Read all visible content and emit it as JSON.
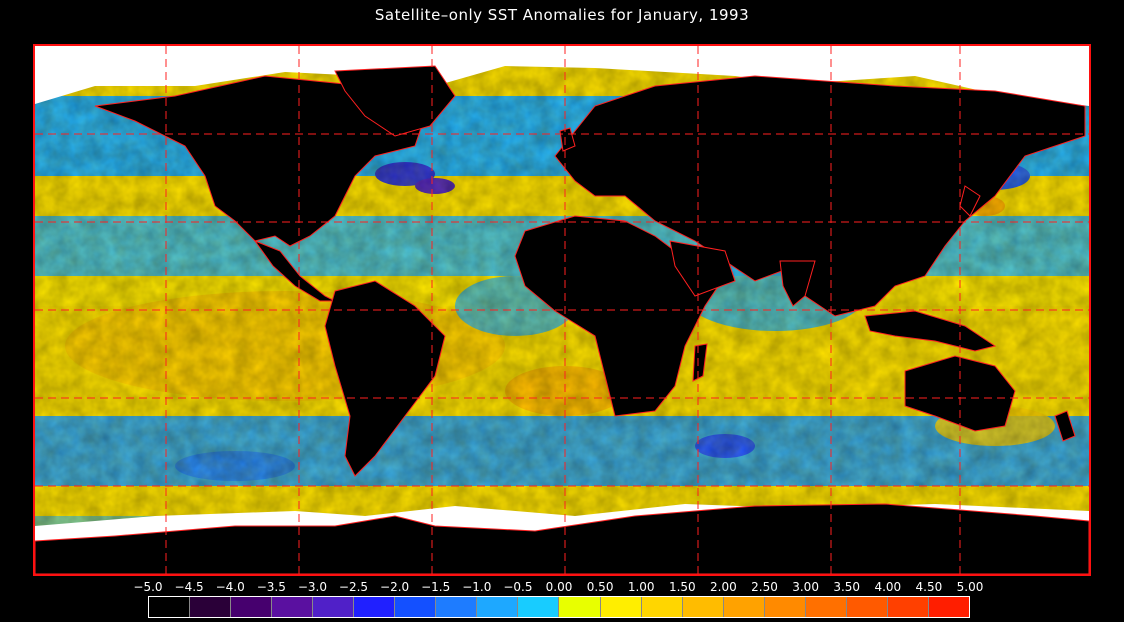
{
  "title": "Satellite–only SST Anomalies for January, 1993",
  "colorbar": {
    "ticks": [
      "−5.0",
      "−4.5",
      "−4.0",
      "−3.5",
      "−3.0",
      "−2.5",
      "−2.0",
      "−1.5",
      "−1.0",
      "−0.5",
      "0.00",
      "0.50",
      "1.00",
      "1.50",
      "2.00",
      "2.50",
      "3.00",
      "3.50",
      "4.00",
      "4.50",
      "5.00"
    ],
    "colors": [
      "#000000",
      "#2a0038",
      "#46006e",
      "#5a10a0",
      "#5020c8",
      "#2020ff",
      "#1450ff",
      "#1e7cff",
      "#1ea8ff",
      "#18ccff",
      "#e8ff00",
      "#ffee00",
      "#ffd600",
      "#ffbc00",
      "#ffa200",
      "#ff8a00",
      "#ff7000",
      "#ff5a00",
      "#ff4000",
      "#ff1e00"
    ]
  },
  "map": {
    "land_color": "#000000",
    "ice_color": "#ffffff",
    "boundary_color": "#ff2020",
    "grid_color": "#ff2020"
  }
}
